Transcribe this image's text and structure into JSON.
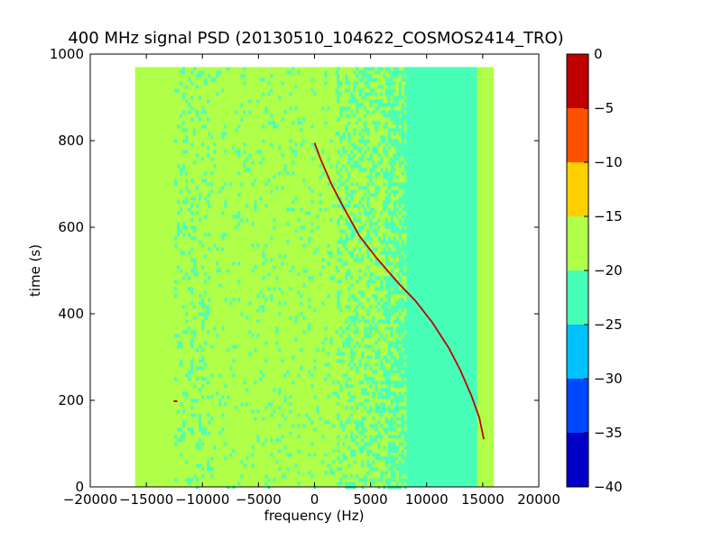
{
  "chart_data": {
    "type": "heatmap",
    "title": "400 MHz signal PSD (20130510_104622_COSMOS2414_TRO)",
    "xlabel": "frequency (Hz)",
    "ylabel": "time (s)",
    "xlim": [
      -20000,
      20000
    ],
    "ylim": [
      0,
      1000
    ],
    "x_ticks": [
      -20000,
      -15000,
      -10000,
      -5000,
      0,
      5000,
      10000,
      15000,
      20000
    ],
    "y_ticks": [
      0,
      200,
      400,
      600,
      800,
      1000
    ],
    "x_tick_labels": [
      "−20000",
      "−15000",
      "−10000",
      "−5000",
      "0",
      "5000",
      "10000",
      "15000",
      "20000"
    ],
    "y_tick_labels": [
      "0",
      "200",
      "400",
      "600",
      "800",
      "1000"
    ],
    "data_extent": {
      "x": [
        -16000,
        16000
      ],
      "y": [
        0,
        970
      ]
    },
    "regions": [
      {
        "x": [
          -16000,
          16000
        ],
        "level": -17.5,
        "desc": "background"
      },
      {
        "x": [
          -12500,
          -9500
        ],
        "level": -22.5,
        "pattern": "speckle-light"
      },
      {
        "x": [
          -9500,
          2000
        ],
        "level": -22.5,
        "pattern": "speckle-very-light"
      },
      {
        "x": [
          2000,
          6300
        ],
        "level": -22.5,
        "pattern": "speckle-medium"
      },
      {
        "x": [
          6300,
          8200
        ],
        "level": -22.5,
        "pattern": "speckle-heavy"
      },
      {
        "x": [
          8200,
          14500
        ],
        "level": -22.5,
        "pattern": "solid"
      }
    ],
    "signal_track": {
      "level": -2.5,
      "points": [
        [
          0,
          795
        ],
        [
          500,
          760
        ],
        [
          1500,
          700
        ],
        [
          2500,
          650
        ],
        [
          4000,
          580
        ],
        [
          5500,
          530
        ],
        [
          7500,
          470
        ],
        [
          9000,
          430
        ],
        [
          10500,
          380
        ],
        [
          12000,
          320
        ],
        [
          13000,
          270
        ],
        [
          14000,
          210
        ],
        [
          14700,
          160
        ],
        [
          15100,
          110
        ]
      ]
    },
    "spot": {
      "x": -12400,
      "y": 198,
      "level": -2.5
    },
    "colorbar": {
      "levels": [
        -40,
        -35,
        -30,
        -25,
        -20,
        -15,
        -10,
        -5,
        0
      ],
      "tick_labels": [
        "−40",
        "−35",
        "−30",
        "−25",
        "−20",
        "−15",
        "−10",
        "−5",
        "0"
      ],
      "colors": [
        "#0000c8",
        "#0048ff",
        "#00c0ff",
        "#48ffb8",
        "#b0ff48",
        "#ffd000",
        "#ff5000",
        "#c00000"
      ]
    }
  }
}
